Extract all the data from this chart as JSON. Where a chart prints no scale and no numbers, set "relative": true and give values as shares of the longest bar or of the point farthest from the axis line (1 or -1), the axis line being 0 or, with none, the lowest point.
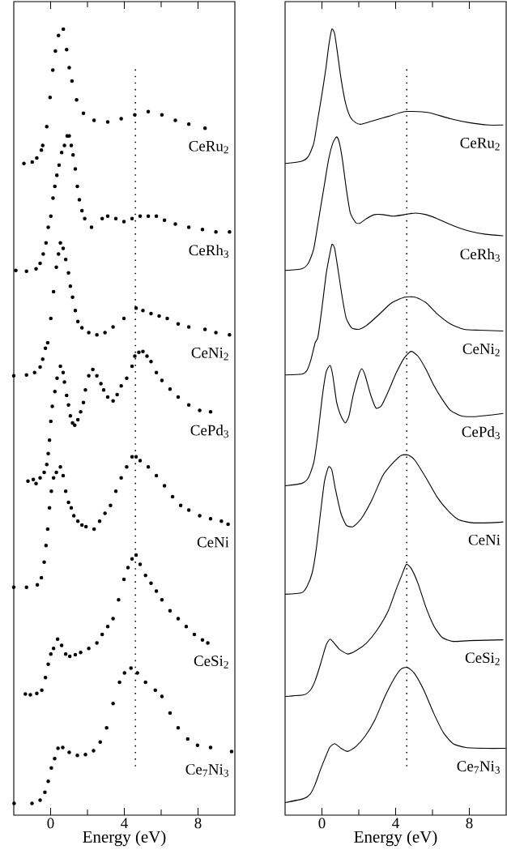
{
  "chart_data": [
    {
      "type": "scatter",
      "relative": true,
      "xlabel": "Energy (eV)",
      "xlim": [
        -2,
        10
      ],
      "xticks": [
        0,
        4,
        8
      ],
      "marker": "circle",
      "ref_lines": [
        {
          "axis": "x",
          "value": 4.6,
          "line_style": "dotted",
          "color": "#000000"
        }
      ],
      "series": [
        {
          "name": "CeRu$_{2}$",
          "color": "#000000",
          "x": [
            -1.45,
            -1.0,
            -0.75,
            -0.5,
            -0.43,
            -0.21,
            -0.03,
            0.12,
            0.26,
            0.43,
            0.69,
            0.87,
            1.01,
            1.16,
            1.41,
            1.78,
            2.36,
            3.1,
            3.83,
            4.57,
            5.3,
            6.04,
            6.77,
            7.5,
            8.38
          ],
          "values": [
            0.829,
            0.831,
            0.836,
            0.846,
            0.852,
            0.876,
            0.913,
            0.948,
            0.972,
            0.992,
            1.0,
            0.974,
            0.951,
            0.934,
            0.91,
            0.893,
            0.884,
            0.882,
            0.886,
            0.891,
            0.895,
            0.891,
            0.884,
            0.879,
            0.874
          ]
        },
        {
          "name": "CeRh$_{3}$",
          "color": "#000000",
          "x": [
            -1.89,
            -1.31,
            -0.79,
            -0.57,
            -0.4,
            -0.25,
            -0.13,
            0.01,
            0.13,
            0.23,
            0.34,
            0.46,
            0.6,
            0.75,
            0.9,
            1.01,
            1.12,
            1.22,
            1.34,
            1.45,
            1.56,
            1.7,
            1.85,
            2.22,
            2.8,
            3.1,
            3.54,
            3.98,
            4.42,
            4.86,
            5.3,
            5.74,
            6.18,
            6.77,
            7.5,
            8.24,
            8.97,
            9.71
          ],
          "values": [
            0.693,
            0.692,
            0.695,
            0.702,
            0.714,
            0.728,
            0.748,
            0.762,
            0.785,
            0.8,
            0.814,
            0.827,
            0.843,
            0.852,
            0.864,
            0.864,
            0.852,
            0.84,
            0.822,
            0.8,
            0.783,
            0.769,
            0.759,
            0.748,
            0.759,
            0.762,
            0.759,
            0.755,
            0.759,
            0.762,
            0.762,
            0.762,
            0.757,
            0.752,
            0.748,
            0.745,
            0.742,
            0.742
          ]
        },
        {
          "name": "CeNi$_{2}$",
          "color": "#000000",
          "x": [
            -2.0,
            -1.31,
            -0.87,
            -0.57,
            -0.43,
            -0.28,
            -0.16,
            0.01,
            0.16,
            0.31,
            0.43,
            0.53,
            0.68,
            0.82,
            0.97,
            1.07,
            1.19,
            1.34,
            1.48,
            1.7,
            2.07,
            2.51,
            2.95,
            3.39,
            3.98,
            4.64,
            5.01,
            5.45,
            5.89,
            6.33,
            6.92,
            7.5,
            8.38,
            8.97,
            9.71
          ],
          "values": [
            0.559,
            0.56,
            0.563,
            0.57,
            0.58,
            0.594,
            0.601,
            0.632,
            0.666,
            0.697,
            0.714,
            0.728,
            0.721,
            0.707,
            0.69,
            0.673,
            0.659,
            0.642,
            0.628,
            0.62,
            0.614,
            0.611,
            0.614,
            0.621,
            0.632,
            0.645,
            0.642,
            0.638,
            0.635,
            0.632,
            0.625,
            0.621,
            0.618,
            0.614,
            0.611
          ]
        },
        {
          "name": "CePd$_{3}$",
          "color": "#000000",
          "x": [
            -1.23,
            -0.94,
            -0.79,
            -0.57,
            -0.35,
            -0.21,
            -0.13,
            -0.06,
            0.01,
            0.09,
            0.23,
            0.35,
            0.53,
            0.68,
            0.75,
            0.87,
            0.97,
            1.07,
            1.19,
            1.31,
            1.48,
            1.63,
            1.78,
            1.89,
            2.07,
            2.29,
            2.51,
            2.73,
            2.88,
            3.1,
            3.39,
            3.61,
            3.83,
            4.13,
            4.42,
            4.57,
            4.79,
            5.01,
            5.23,
            5.45,
            5.74,
            6.04,
            6.48,
            6.92,
            7.5,
            8.09,
            8.68
          ],
          "values": [
            0.425,
            0.427,
            0.422,
            0.429,
            0.436,
            0.446,
            0.46,
            0.477,
            0.501,
            0.52,
            0.539,
            0.556,
            0.571,
            0.563,
            0.551,
            0.534,
            0.522,
            0.508,
            0.499,
            0.496,
            0.503,
            0.513,
            0.525,
            0.541,
            0.559,
            0.567,
            0.559,
            0.549,
            0.541,
            0.532,
            0.527,
            0.535,
            0.546,
            0.556,
            0.571,
            0.584,
            0.589,
            0.59,
            0.584,
            0.577,
            0.563,
            0.553,
            0.542,
            0.532,
            0.522,
            0.515,
            0.513
          ]
        },
        {
          "name": "CeNi",
          "color": "#000000",
          "x": [
            -2.0,
            -1.31,
            -0.72,
            -0.5,
            -0.35,
            -0.25,
            -0.16,
            -0.06,
            0.04,
            0.16,
            0.31,
            0.53,
            0.68,
            0.82,
            0.97,
            1.12,
            1.26,
            1.48,
            1.7,
            1.92,
            2.36,
            2.66,
            2.95,
            3.25,
            3.54,
            3.83,
            4.13,
            4.42,
            4.64,
            4.86,
            5.3,
            5.74,
            6.18,
            6.62,
            7.06,
            7.5,
            8.09,
            8.68,
            9.27,
            9.63
          ],
          "values": [
            0.29,
            0.29,
            0.293,
            0.302,
            0.322,
            0.343,
            0.364,
            0.391,
            0.412,
            0.429,
            0.436,
            0.443,
            0.432,
            0.412,
            0.398,
            0.391,
            0.381,
            0.374,
            0.369,
            0.367,
            0.364,
            0.374,
            0.384,
            0.394,
            0.412,
            0.429,
            0.443,
            0.456,
            0.456,
            0.451,
            0.443,
            0.432,
            0.419,
            0.405,
            0.394,
            0.388,
            0.381,
            0.377,
            0.374,
            0.37
          ]
        },
        {
          "name": "CeSi$_{2}$",
          "color": "#000000",
          "x": [
            -1.37,
            -1.1,
            -0.75,
            -0.48,
            -0.28,
            -0.13,
            0.01,
            0.16,
            0.38,
            0.6,
            0.82,
            1.04,
            1.34,
            1.63,
            2.07,
            2.51,
            2.8,
            3.1,
            3.39,
            3.69,
            3.98,
            4.2,
            4.42,
            4.64,
            4.86,
            5.15,
            5.45,
            5.74,
            6.04,
            6.48,
            6.92,
            7.36,
            7.8,
            8.24,
            8.53
          ],
          "values": [
            0.154,
            0.153,
            0.155,
            0.159,
            0.175,
            0.192,
            0.205,
            0.212,
            0.224,
            0.216,
            0.205,
            0.202,
            0.204,
            0.207,
            0.212,
            0.219,
            0.23,
            0.24,
            0.25,
            0.274,
            0.3,
            0.315,
            0.326,
            0.331,
            0.319,
            0.305,
            0.295,
            0.285,
            0.274,
            0.26,
            0.25,
            0.24,
            0.23,
            0.223,
            0.219
          ]
        },
        {
          "name": "Ce$_{7}$Ni$_{3}$",
          "color": "#000000",
          "x": [
            -1.98,
            -1.01,
            -0.57,
            -0.31,
            -0.13,
            0.04,
            0.22,
            0.4,
            0.66,
            1.01,
            1.45,
            1.89,
            2.33,
            2.69,
            3.04,
            3.39,
            3.74,
            4.01,
            4.36,
            4.71,
            5.15,
            5.68,
            6.04,
            6.48,
            6.92,
            7.44,
            7.97,
            8.68,
            9.82
          ],
          "values": [
            0.015,
            0.015,
            0.019,
            0.029,
            0.043,
            0.06,
            0.072,
            0.085,
            0.086,
            0.08,
            0.076,
            0.077,
            0.082,
            0.093,
            0.111,
            0.142,
            0.169,
            0.181,
            0.187,
            0.181,
            0.169,
            0.159,
            0.151,
            0.13,
            0.111,
            0.097,
            0.089,
            0.086,
            0.081
          ]
        }
      ]
    },
    {
      "type": "line",
      "relative": true,
      "xlabel": "Energy (eV)",
      "xlim": [
        -2,
        10
      ],
      "xticks": [
        0,
        4,
        8
      ],
      "marker": "none",
      "line_style": "solid",
      "ref_lines": [
        {
          "axis": "x",
          "value": 4.6,
          "line_style": "dotted",
          "color": "#000000"
        }
      ],
      "series": [
        {
          "name": "CeRu$_{2}$",
          "color": "#000000",
          "x": [
            -2.0,
            -1.1,
            -0.74,
            -0.44,
            -0.22,
            0.0,
            0.22,
            0.37,
            0.54,
            0.69,
            0.83,
            1.03,
            1.27,
            1.54,
            1.83,
            2.13,
            2.86,
            3.6,
            4.48,
            5.21,
            5.95,
            6.97,
            8.0,
            9.03,
            9.84
          ],
          "values": [
            0.829,
            0.832,
            0.838,
            0.855,
            0.886,
            0.917,
            0.951,
            0.979,
            1.0,
            0.994,
            0.972,
            0.938,
            0.907,
            0.888,
            0.881,
            0.879,
            0.884,
            0.889,
            0.895,
            0.895,
            0.893,
            0.886,
            0.881,
            0.878,
            0.878
          ]
        },
        {
          "name": "CeRh$_{3}$",
          "color": "#000000",
          "x": [
            -2.0,
            -1.1,
            -0.74,
            -0.44,
            -0.15,
            0.14,
            0.36,
            0.59,
            0.8,
            0.95,
            1.13,
            1.32,
            1.54,
            1.83,
            2.06,
            2.42,
            2.86,
            3.3,
            3.89,
            4.48,
            5.06,
            5.65,
            6.24,
            7.12,
            8.0,
            8.88,
            9.84
          ],
          "values": [
            0.693,
            0.695,
            0.702,
            0.721,
            0.762,
            0.803,
            0.834,
            0.855,
            0.863,
            0.855,
            0.831,
            0.797,
            0.766,
            0.754,
            0.753,
            0.759,
            0.764,
            0.764,
            0.762,
            0.764,
            0.766,
            0.764,
            0.759,
            0.75,
            0.743,
            0.739,
            0.737
          ]
        },
        {
          "name": "CeNi$_{2}$",
          "color": "#000000",
          "x": [
            -2.0,
            -1.1,
            -0.81,
            -0.59,
            -0.37,
            -0.22,
            0.0,
            0.22,
            0.37,
            0.54,
            0.69,
            0.88,
            1.1,
            1.32,
            1.61,
            1.98,
            2.42,
            3.01,
            3.74,
            4.48,
            5.06,
            5.65,
            6.24,
            6.97,
            7.71,
            8.59,
            9.84
          ],
          "values": [
            0.56,
            0.561,
            0.566,
            0.58,
            0.601,
            0.608,
            0.645,
            0.687,
            0.707,
            0.726,
            0.721,
            0.693,
            0.659,
            0.632,
            0.62,
            0.618,
            0.623,
            0.635,
            0.651,
            0.659,
            0.659,
            0.652,
            0.638,
            0.625,
            0.618,
            0.617,
            0.616
          ]
        },
        {
          "name": "CePd$_{3}$",
          "color": "#000000",
          "x": [
            -2.0,
            -1.1,
            -0.74,
            -0.44,
            -0.22,
            0.0,
            0.22,
            0.44,
            0.59,
            0.8,
            1.03,
            1.27,
            1.47,
            1.7,
            1.98,
            2.16,
            2.35,
            2.64,
            2.93,
            3.23,
            3.6,
            4.04,
            4.48,
            4.84,
            5.21,
            5.65,
            6.09,
            6.53,
            6.97,
            7.56,
            8.29,
            9.17,
            9.84
          ],
          "values": [
            0.419,
            0.422,
            0.429,
            0.449,
            0.484,
            0.529,
            0.563,
            0.572,
            0.559,
            0.525,
            0.508,
            0.499,
            0.508,
            0.535,
            0.559,
            0.568,
            0.559,
            0.535,
            0.518,
            0.521,
            0.539,
            0.563,
            0.582,
            0.59,
            0.584,
            0.567,
            0.546,
            0.529,
            0.515,
            0.508,
            0.507,
            0.509,
            0.511
          ]
        },
        {
          "name": "CeNi",
          "color": "#000000",
          "x": [
            -2.0,
            -1.1,
            -0.81,
            -0.52,
            -0.3,
            -0.08,
            0.14,
            0.36,
            0.54,
            0.73,
            1.03,
            1.32,
            1.68,
            2.13,
            2.71,
            3.3,
            3.89,
            4.33,
            4.7,
            5.06,
            5.65,
            6.24,
            6.82,
            7.41,
            8.14,
            9.17,
            9.84
          ],
          "values": [
            0.281,
            0.283,
            0.291,
            0.309,
            0.34,
            0.384,
            0.425,
            0.443,
            0.439,
            0.415,
            0.384,
            0.369,
            0.367,
            0.377,
            0.401,
            0.432,
            0.449,
            0.458,
            0.458,
            0.451,
            0.429,
            0.405,
            0.388,
            0.376,
            0.372,
            0.372,
            0.373
          ]
        },
        {
          "name": "CeSi$_{2}$",
          "color": "#000000",
          "x": [
            -2.0,
            -0.99,
            -0.63,
            -0.37,
            -0.08,
            0.22,
            0.44,
            0.66,
            0.95,
            1.39,
            1.83,
            2.42,
            3.01,
            3.6,
            4.04,
            4.33,
            4.58,
            4.84,
            5.21,
            5.65,
            6.09,
            6.53,
            7.12,
            8.0,
            9.84
          ],
          "values": [
            0.151,
            0.153,
            0.159,
            0.171,
            0.192,
            0.216,
            0.224,
            0.219,
            0.211,
            0.205,
            0.209,
            0.219,
            0.236,
            0.26,
            0.288,
            0.305,
            0.319,
            0.314,
            0.295,
            0.264,
            0.24,
            0.226,
            0.221,
            0.222,
            0.223
          ]
        },
        {
          "name": "Ce$_{7}$Ni$_{3}$",
          "color": "#000000",
          "x": [
            -2.0,
            -0.99,
            -0.63,
            -0.37,
            -0.11,
            0.16,
            0.42,
            0.69,
            1.04,
            1.39,
            1.83,
            2.36,
            2.89,
            3.42,
            3.95,
            4.3,
            4.62,
            5.0,
            5.53,
            6.06,
            6.59,
            7.12,
            7.82,
            8.88,
            9.98
          ],
          "values": [
            0.016,
            0.021,
            0.027,
            0.039,
            0.056,
            0.072,
            0.086,
            0.091,
            0.085,
            0.081,
            0.087,
            0.101,
            0.122,
            0.151,
            0.175,
            0.186,
            0.188,
            0.181,
            0.159,
            0.13,
            0.105,
            0.091,
            0.086,
            0.085,
            0.085
          ]
        }
      ]
    }
  ]
}
